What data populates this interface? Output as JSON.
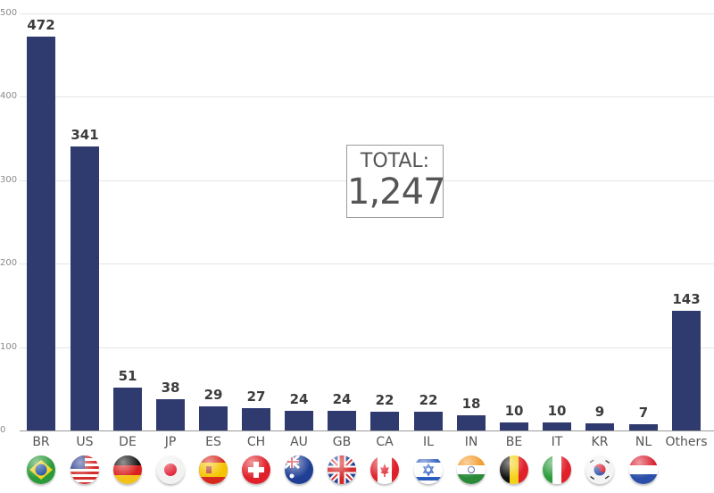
{
  "chart_data": {
    "type": "bar",
    "title": "",
    "xlabel": "",
    "ylabel": "",
    "ylim": [
      0,
      500
    ],
    "yticks": [
      0,
      100,
      200,
      300,
      400,
      500
    ],
    "grid": true,
    "legend": "none",
    "bar_color": "#2f3a6e",
    "categories": [
      "BR",
      "US",
      "DE",
      "JP",
      "ES",
      "CH",
      "AU",
      "GB",
      "CA",
      "IL",
      "IN",
      "BE",
      "IT",
      "KR",
      "NL",
      "Others"
    ],
    "values": [
      472,
      341,
      51,
      38,
      29,
      27,
      24,
      24,
      22,
      22,
      18,
      10,
      10,
      9,
      7,
      143
    ],
    "annotations": [
      {
        "text": "TOTAL:",
        "value": "1,247"
      }
    ]
  },
  "total": {
    "label": "TOTAL:",
    "value": "1,247"
  },
  "yaxis": {
    "ticks": [
      "0",
      "100",
      "200",
      "300",
      "400",
      "500"
    ]
  },
  "bars": [
    {
      "code": "BR",
      "value": "472",
      "flag": "brazil-flag-icon"
    },
    {
      "code": "US",
      "value": "341",
      "flag": "usa-flag-icon"
    },
    {
      "code": "DE",
      "value": "51",
      "flag": "germany-flag-icon"
    },
    {
      "code": "JP",
      "value": "38",
      "flag": "japan-flag-icon"
    },
    {
      "code": "ES",
      "value": "29",
      "flag": "spain-flag-icon"
    },
    {
      "code": "CH",
      "value": "27",
      "flag": "switzerland-flag-icon"
    },
    {
      "code": "AU",
      "value": "24",
      "flag": "australia-flag-icon"
    },
    {
      "code": "GB",
      "value": "24",
      "flag": "uk-flag-icon"
    },
    {
      "code": "CA",
      "value": "22",
      "flag": "canada-flag-icon"
    },
    {
      "code": "IL",
      "value": "22",
      "flag": "israel-flag-icon"
    },
    {
      "code": "IN",
      "value": "18",
      "flag": "india-flag-icon"
    },
    {
      "code": "BE",
      "value": "10",
      "flag": "belgium-flag-icon"
    },
    {
      "code": "IT",
      "value": "10",
      "flag": "italy-flag-icon"
    },
    {
      "code": "KR",
      "value": "9",
      "flag": "south-korea-flag-icon"
    },
    {
      "code": "NL",
      "value": "7",
      "flag": "netherlands-flag-icon"
    },
    {
      "code": "Others",
      "value": "143",
      "flag": ""
    }
  ]
}
